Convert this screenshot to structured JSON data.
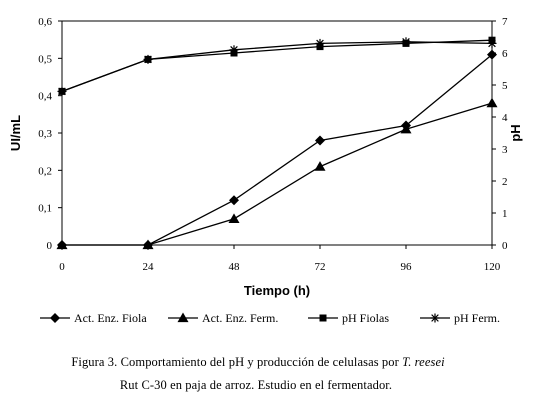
{
  "chart_data": {
    "type": "line",
    "xlabel": "Tiempo (h)",
    "ylabel_left": "UI/mL",
    "ylabel_right": "pH",
    "x": [
      0,
      24,
      48,
      72,
      96,
      120
    ],
    "x_ticks": [
      "0",
      "24",
      "48",
      "72",
      "96",
      "120"
    ],
    "y_left_ticks": [
      "0",
      "0,1",
      "0,2",
      "0,3",
      "0,4",
      "0,5",
      "0,6"
    ],
    "y_right_ticks": [
      "0",
      "1",
      "2",
      "3",
      "4",
      "5",
      "6",
      "7"
    ],
    "ylim_left": [
      0,
      0.6
    ],
    "ylim_right": [
      0,
      7
    ],
    "grid": false,
    "legend_position": "bottom",
    "series": [
      {
        "name": "Act. Enz. Fiola",
        "axis": "left",
        "marker": "diamond",
        "values": [
          0,
          0,
          0.12,
          0.28,
          0.32,
          0.51
        ]
      },
      {
        "name": "Act. Enz. Ferm.",
        "axis": "left",
        "marker": "triangle",
        "values": [
          0,
          0,
          0.07,
          0.21,
          0.31,
          0.38
        ]
      },
      {
        "name": "pH Fiolas",
        "axis": "right",
        "marker": "square",
        "values": [
          4.8,
          5.8,
          6.0,
          6.2,
          6.3,
          6.4
        ]
      },
      {
        "name": "pH Ferm.",
        "axis": "right",
        "marker": "asterisk",
        "values": [
          4.8,
          5.8,
          6.1,
          6.3,
          6.35,
          6.3
        ]
      }
    ]
  },
  "caption": {
    "line1_prefix": "Figura 3. Comportamiento del pH y producción de celulasas por ",
    "line1_species": "T. reesei",
    "line2": "Rut C-30 en paja de arroz.   Estudio en el fermentador."
  }
}
